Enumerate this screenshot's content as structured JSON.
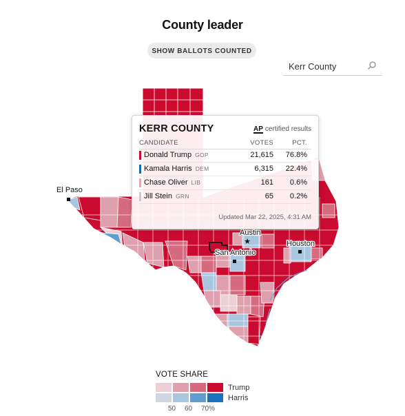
{
  "title": "County leader",
  "toggle_label": "SHOW BALLOTS COUNTED",
  "search": {
    "value": "Kerr County",
    "icon": "search-icon"
  },
  "cities": [
    {
      "name": "El Paso"
    },
    {
      "name": "Austin"
    },
    {
      "name": "San Antonio"
    },
    {
      "name": "Houston"
    }
  ],
  "tooltip": {
    "county": "KERR COUNTY",
    "ap_logo": "AP",
    "ap_text": "certified results",
    "col_candidate": "CANDIDATE",
    "col_votes": "VOTES",
    "col_pct": "PCT.",
    "rows": [
      {
        "name": "Donald Trump",
        "party": "GOP",
        "votes": "21,615",
        "pct": "76.8%",
        "color": "#cb0a2f"
      },
      {
        "name": "Kamala Harris",
        "party": "DEM",
        "votes": "6,315",
        "pct": "22.4%",
        "color": "#1a6aa8"
      },
      {
        "name": "Chase Oliver",
        "party": "LIB",
        "votes": "161",
        "pct": "0.6%",
        "color": "#e6a9b4"
      },
      {
        "name": "Jill Stein",
        "party": "GRN",
        "votes": "65",
        "pct": "0.2%",
        "color": "#d4c6ca"
      }
    ],
    "updated": "Updated Mar 22, 2025, 4:31 AM"
  },
  "legend": {
    "title": "VOTE SHARE",
    "trump_label": "Trump",
    "harris_label": "Harris",
    "trump_colors": [
      "#ecd0d6",
      "#dfa0ad",
      "#d66a7f",
      "#cb0a2f"
    ],
    "harris_colors": [
      "#cfd8e2",
      "#a9c6df",
      "#5f9dd0",
      "#1a72c0"
    ],
    "ticks": [
      "50",
      "60",
      "70%"
    ]
  },
  "colors": {
    "trump_strong": "#cb0a2f",
    "trump_medium": "#d66a7f",
    "trump_light": "#dfa0ad",
    "harris_light": "#a9c6df",
    "harris_medium": "#5f9dd0"
  }
}
